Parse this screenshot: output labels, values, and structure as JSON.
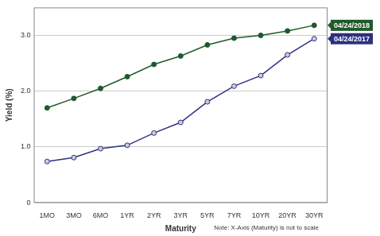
{
  "chart_data": {
    "type": "line",
    "x_label": "Maturity",
    "y_label": "Yield (%)",
    "annotation": "Note: X-Axis (Maturity) is not to scale",
    "categories": [
      "1MO",
      "3MO",
      "6MO",
      "1YR",
      "2YR",
      "3YR",
      "5YR",
      "7YR",
      "10YR",
      "20YR",
      "30YR"
    ],
    "series": [
      {
        "name": "04/24/2018",
        "color": "#1f5a2a",
        "marker": "circle",
        "values": [
          1.7,
          1.87,
          2.05,
          2.26,
          2.48,
          2.63,
          2.83,
          2.95,
          3.0,
          3.08,
          3.18
        ]
      },
      {
        "name": "04/24/2017",
        "color": "#2c3080",
        "marker": "circle",
        "values": [
          0.74,
          0.81,
          0.97,
          1.03,
          1.25,
          1.44,
          1.81,
          2.09,
          2.28,
          2.65,
          2.94
        ]
      }
    ],
    "ylim": [
      0,
      3.5
    ],
    "yticks": [
      0,
      {
        "value": 1,
        "label": "1.0"
      },
      {
        "value": 2,
        "label": "2.0"
      },
      {
        "value": 3,
        "label": "3.0"
      }
    ],
    "grid": true
  }
}
